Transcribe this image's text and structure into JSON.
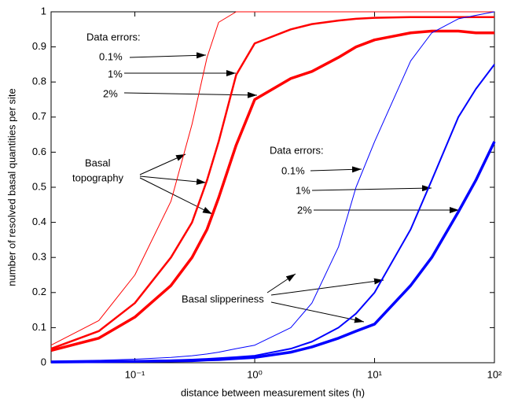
{
  "chart_data": {
    "type": "line",
    "xlabel": "distance between measurement sites (h)",
    "ylabel": "number of resolved basal quantities per site",
    "xscale": "log",
    "xlim": [
      0.02,
      100
    ],
    "ylim": [
      0,
      1
    ],
    "xticks": [
      {
        "value": 0.1,
        "label": "10⁻¹"
      },
      {
        "value": 1,
        "label": "10⁰"
      },
      {
        "value": 10,
        "label": "10¹"
      },
      {
        "value": 100,
        "label": "10²"
      }
    ],
    "yticks": [
      0,
      0.1,
      0.2,
      0.3,
      0.4,
      0.5,
      0.6,
      0.7,
      0.8,
      0.9,
      1
    ],
    "grid": false,
    "x": [
      0.02,
      0.05,
      0.1,
      0.2,
      0.3,
      0.4,
      0.5,
      0.7,
      1,
      2,
      3,
      5,
      7,
      10,
      20,
      30,
      50,
      70,
      100
    ],
    "series": [
      {
        "color": "#ff0000",
        "line_width": 1,
        "values": [
          0.05,
          0.12,
          0.25,
          0.46,
          0.68,
          0.87,
          0.97,
          1.0,
          1.0,
          1.0,
          1.0,
          1.0,
          1.0,
          1.0,
          1.0,
          1.0,
          1.0,
          1.0,
          1.0
        ]
      },
      {
        "color": "#ff0000",
        "line_width": 2.5,
        "values": [
          0.04,
          0.09,
          0.17,
          0.3,
          0.4,
          0.52,
          0.63,
          0.82,
          0.91,
          0.95,
          0.965,
          0.975,
          0.98,
          0.983,
          0.985,
          0.985,
          0.985,
          0.985,
          0.985
        ]
      },
      {
        "color": "#ff0000",
        "line_width": 3.5,
        "values": [
          0.035,
          0.07,
          0.13,
          0.22,
          0.3,
          0.38,
          0.47,
          0.62,
          0.75,
          0.81,
          0.83,
          0.87,
          0.9,
          0.92,
          0.94,
          0.945,
          0.945,
          0.94,
          0.94
        ]
      },
      {
        "color": "#0000ff",
        "line_width": 1,
        "values": [
          0.005,
          0.007,
          0.01,
          0.015,
          0.02,
          0.025,
          0.03,
          0.04,
          0.05,
          0.1,
          0.17,
          0.33,
          0.5,
          0.63,
          0.86,
          0.94,
          0.98,
          0.99,
          1.0
        ]
      },
      {
        "color": "#0000ff",
        "line_width": 2,
        "values": [
          0.003,
          0.004,
          0.005,
          0.007,
          0.009,
          0.011,
          0.013,
          0.016,
          0.02,
          0.04,
          0.06,
          0.1,
          0.14,
          0.2,
          0.38,
          0.52,
          0.7,
          0.78,
          0.85
        ]
      },
      {
        "color": "#0000ff",
        "line_width": 3.5,
        "values": [
          0.002,
          0.003,
          0.004,
          0.005,
          0.006,
          0.008,
          0.009,
          0.012,
          0.015,
          0.03,
          0.045,
          0.07,
          0.09,
          0.11,
          0.22,
          0.3,
          0.43,
          0.52,
          0.63
        ]
      }
    ],
    "annotations": {
      "topography": {
        "heading": "Data errors:",
        "levels": [
          "0.1%",
          "1%",
          "2%"
        ],
        "group": [
          "Basal",
          "topography"
        ]
      },
      "slipperiness": {
        "heading": "Data errors:",
        "levels": [
          "0.1%",
          "1%",
          "2%"
        ],
        "group": [
          "Basal slipperiness"
        ]
      }
    }
  }
}
